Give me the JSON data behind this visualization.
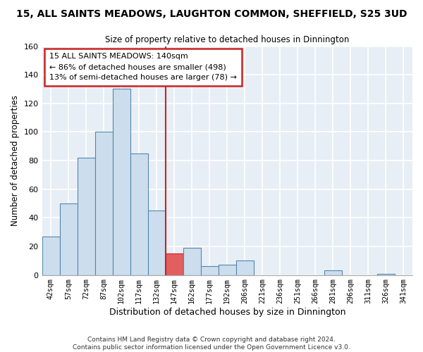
{
  "title": "15, ALL SAINTS MEADOWS, LAUGHTON COMMON, SHEFFIELD, S25 3UD",
  "subtitle": "Size of property relative to detached houses in Dinnington",
  "xlabel": "Distribution of detached houses by size in Dinnington",
  "ylabel": "Number of detached properties",
  "footnote1": "Contains HM Land Registry data © Crown copyright and database right 2024.",
  "footnote2": "Contains public sector information licensed under the Open Government Licence v3.0.",
  "bin_labels": [
    "42sqm",
    "57sqm",
    "72sqm",
    "87sqm",
    "102sqm",
    "117sqm",
    "132sqm",
    "147sqm",
    "162sqm",
    "177sqm",
    "192sqm",
    "206sqm",
    "221sqm",
    "236sqm",
    "251sqm",
    "266sqm",
    "281sqm",
    "296sqm",
    "311sqm",
    "326sqm",
    "341sqm"
  ],
  "bar_heights": [
    27,
    50,
    82,
    100,
    130,
    85,
    45,
    15,
    19,
    6,
    7,
    10,
    0,
    0,
    0,
    0,
    3,
    0,
    0,
    1,
    0
  ],
  "highlight_bin_index": 7,
  "bar_color_normal": "#ccdded",
  "bar_color_highlight": "#e06060",
  "bar_edge_color": "#5588aa",
  "bar_edge_highlight": "#cc2222",
  "vline_color": "#cc2222",
  "vline_x": 7,
  "annotation_title": "15 ALL SAINTS MEADOWS: 140sqm",
  "annotation_line1": "← 86% of detached houses are smaller (498)",
  "annotation_line2": "13% of semi-detached houses are larger (78) →",
  "annotation_box_color": "#ffffff",
  "annotation_box_edge": "#cc2222",
  "ylim": [
    0,
    160
  ],
  "yticks": [
    0,
    20,
    40,
    60,
    80,
    100,
    120,
    140,
    160
  ],
  "background_color": "#ffffff",
  "plot_bg_color": "#e8eef5",
  "grid_color": "#ffffff"
}
